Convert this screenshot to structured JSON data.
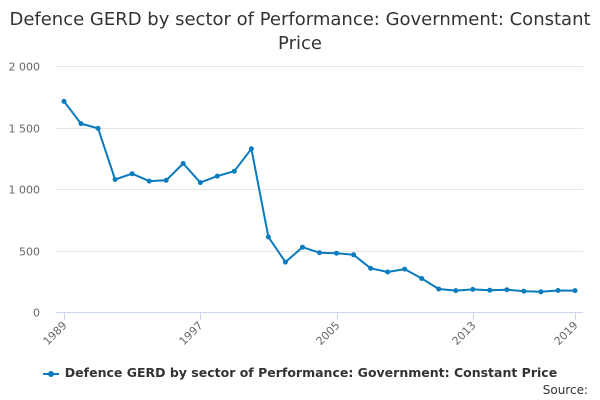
{
  "colors": {
    "series": "#0a7bbd",
    "grid": "#e6e6e6",
    "axis_line": "#ccd6eb",
    "tick_label": "#666666"
  },
  "credits": "Source:",
  "chart_data": {
    "type": "line",
    "title": "Defence GERD by sector of Performance: Government: Constant Price",
    "xlabel": "",
    "ylabel": "",
    "x": [
      1989,
      1990,
      1991,
      1992,
      1993,
      1994,
      1995,
      1996,
      1997,
      1998,
      1999,
      2000,
      2001,
      2002,
      2003,
      2004,
      2005,
      2006,
      2007,
      2008,
      2009,
      2010,
      2011,
      2012,
      2013,
      2014,
      2015,
      2016,
      2017,
      2018,
      2019
    ],
    "xlim": [
      1989,
      2019
    ],
    "x_tick_labels": [
      "1989",
      "1997",
      "2005",
      "2013",
      "2019"
    ],
    "x_tick_values": [
      1989,
      1997,
      2005,
      2013,
      2019
    ],
    "ylim": [
      0,
      2000
    ],
    "y_ticks": [
      0,
      500,
      1000,
      1500,
      2000
    ],
    "y_tick_labels": [
      "0",
      "500",
      "1 000",
      "1 500",
      "2 000"
    ],
    "grid": true,
    "legend_position": "bottom",
    "series": [
      {
        "name": "Defence GERD by sector of Performance: Government: Constant Price",
        "values": [
          1712,
          1532,
          1493,
          1077,
          1124,
          1064,
          1071,
          1207,
          1052,
          1105,
          1145,
          1327,
          610,
          406,
          527,
          482,
          478,
          465,
          355,
          325,
          349,
          272,
          187,
          174,
          184,
          177,
          181,
          169,
          164,
          175,
          174
        ]
      }
    ]
  }
}
